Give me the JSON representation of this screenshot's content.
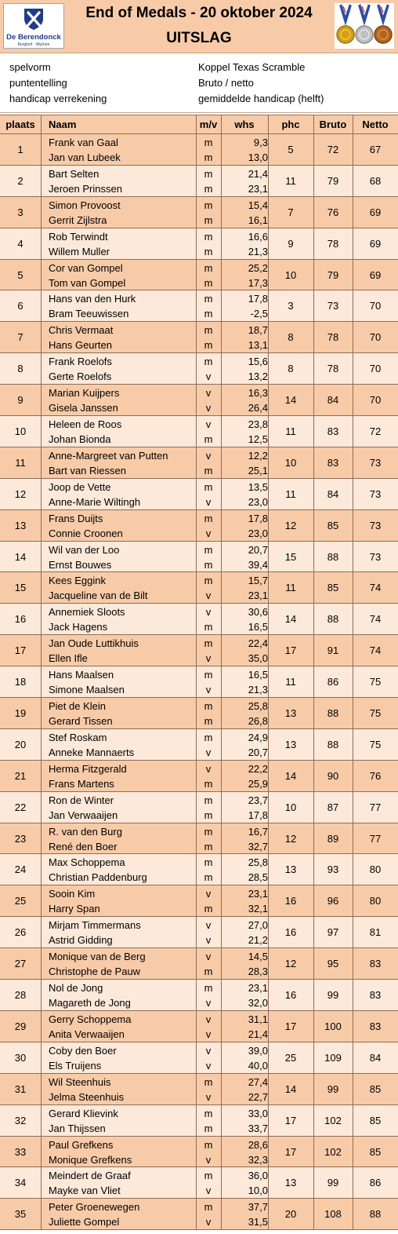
{
  "header": {
    "logo_name": "De Berendonck",
    "logo_sub": "Burgloof · Wijchen",
    "title": "End of Medals - 20 oktober 2024",
    "subtitle": "UITSLAG"
  },
  "info": [
    {
      "key": "spelvorm",
      "value": "Koppel Texas Scramble"
    },
    {
      "key": "puntentelling",
      "value": "Bruto / netto"
    },
    {
      "key": "handicap verrekening",
      "value": "gemiddelde handicap (helft)"
    }
  ],
  "columns": {
    "plaats": "plaats",
    "naam": "Naam",
    "mv": "m/v",
    "whs": "whs",
    "phc": "phc",
    "bruto": "Bruto",
    "netto": "Netto"
  },
  "rows": [
    {
      "plaats": "1",
      "players": [
        {
          "name": "Frank van Gaal",
          "mv": "m",
          "whs": "9,3"
        },
        {
          "name": "Jan van Lubeek",
          "mv": "m",
          "whs": "13,0"
        }
      ],
      "phc": "5",
      "bruto": "72",
      "netto": "67"
    },
    {
      "plaats": "2",
      "players": [
        {
          "name": "Bart Selten",
          "mv": "m",
          "whs": "21,4"
        },
        {
          "name": "Jeroen Prinssen",
          "mv": "m",
          "whs": "23,1"
        }
      ],
      "phc": "11",
      "bruto": "79",
      "netto": "68"
    },
    {
      "plaats": "3",
      "players": [
        {
          "name": "Simon Provoost",
          "mv": "m",
          "whs": "15,4"
        },
        {
          "name": "Gerrit Zijlstra",
          "mv": "m",
          "whs": "16,1"
        }
      ],
      "phc": "7",
      "bruto": "76",
      "netto": "69"
    },
    {
      "plaats": "4",
      "players": [
        {
          "name": "Rob Terwindt",
          "mv": "m",
          "whs": "16,6"
        },
        {
          "name": "Willem Muller",
          "mv": "m",
          "whs": "21,3"
        }
      ],
      "phc": "9",
      "bruto": "78",
      "netto": "69"
    },
    {
      "plaats": "5",
      "players": [
        {
          "name": "Cor van Gompel",
          "mv": "m",
          "whs": "25,2"
        },
        {
          "name": "Tom van Gompel",
          "mv": "m",
          "whs": "17,3"
        }
      ],
      "phc": "10",
      "bruto": "79",
      "netto": "69"
    },
    {
      "plaats": "6",
      "players": [
        {
          "name": "Hans van den Hurk",
          "mv": "m",
          "whs": "17,8"
        },
        {
          "name": "Bram Teeuwissen",
          "mv": "m",
          "whs": "-2,5"
        }
      ],
      "phc": "3",
      "bruto": "73",
      "netto": "70"
    },
    {
      "plaats": "7",
      "players": [
        {
          "name": "Chris Vermaat",
          "mv": "m",
          "whs": "18,7"
        },
        {
          "name": "Hans Geurten",
          "mv": "m",
          "whs": "13,1"
        }
      ],
      "phc": "8",
      "bruto": "78",
      "netto": "70"
    },
    {
      "plaats": "8",
      "players": [
        {
          "name": "Frank Roelofs",
          "mv": "m",
          "whs": "15,6"
        },
        {
          "name": "Gerte Roelofs",
          "mv": "v",
          "whs": "13,2"
        }
      ],
      "phc": "8",
      "bruto": "78",
      "netto": "70"
    },
    {
      "plaats": "9",
      "players": [
        {
          "name": "Marian Kuijpers",
          "mv": "v",
          "whs": "16,3"
        },
        {
          "name": "Gisela Janssen",
          "mv": "v",
          "whs": "26,4"
        }
      ],
      "phc": "14",
      "bruto": "84",
      "netto": "70"
    },
    {
      "plaats": "10",
      "players": [
        {
          "name": "Heleen de Roos",
          "mv": "v",
          "whs": "23,8"
        },
        {
          "name": "Johan Bionda",
          "mv": "m",
          "whs": "12,5"
        }
      ],
      "phc": "11",
      "bruto": "83",
      "netto": "72"
    },
    {
      "plaats": "11",
      "players": [
        {
          "name": "Anne-Margreet van Putten",
          "mv": "v",
          "whs": "12,2"
        },
        {
          "name": "Bart van Riessen",
          "mv": "m",
          "whs": "25,1"
        }
      ],
      "phc": "10",
      "bruto": "83",
      "netto": "73"
    },
    {
      "plaats": "12",
      "players": [
        {
          "name": "Joop de Vette",
          "mv": "m",
          "whs": "13,5"
        },
        {
          "name": "Anne-Marie Wiltingh",
          "mv": "v",
          "whs": "23,0"
        }
      ],
      "phc": "11",
      "bruto": "84",
      "netto": "73"
    },
    {
      "plaats": "13",
      "players": [
        {
          "name": "Frans Duijts",
          "mv": "m",
          "whs": "17,8"
        },
        {
          "name": "Connie Croonen",
          "mv": "v",
          "whs": "23,0"
        }
      ],
      "phc": "12",
      "bruto": "85",
      "netto": "73"
    },
    {
      "plaats": "14",
      "players": [
        {
          "name": "Wil van der Loo",
          "mv": "m",
          "whs": "20,7"
        },
        {
          "name": "Ernst Bouwes",
          "mv": "m",
          "whs": "39,4"
        }
      ],
      "phc": "15",
      "bruto": "88",
      "netto": "73"
    },
    {
      "plaats": "15",
      "players": [
        {
          "name": "Kees Eggink",
          "mv": "m",
          "whs": "15,7"
        },
        {
          "name": "Jacqueline van de Bilt",
          "mv": "v",
          "whs": "23,1"
        }
      ],
      "phc": "11",
      "bruto": "85",
      "netto": "74"
    },
    {
      "plaats": "16",
      "players": [
        {
          "name": "Annemiek Sloots",
          "mv": "v",
          "whs": "30,6"
        },
        {
          "name": "Jack Hagens",
          "mv": "m",
          "whs": "16,5"
        }
      ],
      "phc": "14",
      "bruto": "88",
      "netto": "74"
    },
    {
      "plaats": "17",
      "players": [
        {
          "name": "Jan Oude Luttikhuis",
          "mv": "m",
          "whs": "22,4"
        },
        {
          "name": "Ellen Ifle",
          "mv": "v",
          "whs": "35,0"
        }
      ],
      "phc": "17",
      "bruto": "91",
      "netto": "74"
    },
    {
      "plaats": "18",
      "players": [
        {
          "name": "Hans Maalsen",
          "mv": "m",
          "whs": "16,5"
        },
        {
          "name": "Simone Maalsen",
          "mv": "v",
          "whs": "21,3"
        }
      ],
      "phc": "11",
      "bruto": "86",
      "netto": "75"
    },
    {
      "plaats": "19",
      "players": [
        {
          "name": "Piet de Klein",
          "mv": "m",
          "whs": "25,8"
        },
        {
          "name": "Gerard Tissen",
          "mv": "m",
          "whs": "26,8"
        }
      ],
      "phc": "13",
      "bruto": "88",
      "netto": "75"
    },
    {
      "plaats": "20",
      "players": [
        {
          "name": "Stef Roskam",
          "mv": "m",
          "whs": "24,9"
        },
        {
          "name": "Anneke Mannaerts",
          "mv": "v",
          "whs": "20,7"
        }
      ],
      "phc": "13",
      "bruto": "88",
      "netto": "75"
    },
    {
      "plaats": "21",
      "players": [
        {
          "name": "Herma Fitzgerald",
          "mv": "v",
          "whs": "22,2"
        },
        {
          "name": "Frans Martens",
          "mv": "m",
          "whs": "25,9"
        }
      ],
      "phc": "14",
      "bruto": "90",
      "netto": "76"
    },
    {
      "plaats": "22",
      "players": [
        {
          "name": "Ron de Winter",
          "mv": "m",
          "whs": "23,7"
        },
        {
          "name": "Jan Verwaaijen",
          "mv": "m",
          "whs": "17,8"
        }
      ],
      "phc": "10",
      "bruto": "87",
      "netto": "77"
    },
    {
      "plaats": "23",
      "players": [
        {
          "name": "R. van den Burg",
          "mv": "m",
          "whs": "16,7"
        },
        {
          "name": "René den Boer",
          "mv": "m",
          "whs": "32,7"
        }
      ],
      "phc": "12",
      "bruto": "89",
      "netto": "77"
    },
    {
      "plaats": "24",
      "players": [
        {
          "name": "Max Schoppema",
          "mv": "m",
          "whs": "25,8"
        },
        {
          "name": "Christian Paddenburg",
          "mv": "m",
          "whs": "28,5"
        }
      ],
      "phc": "13",
      "bruto": "93",
      "netto": "80"
    },
    {
      "plaats": "25",
      "players": [
        {
          "name": "Sooin Kim",
          "mv": "v",
          "whs": "23,1"
        },
        {
          "name": "Harry Span",
          "mv": "m",
          "whs": "32,1"
        }
      ],
      "phc": "16",
      "bruto": "96",
      "netto": "80"
    },
    {
      "plaats": "26",
      "players": [
        {
          "name": "Mirjam Timmermans",
          "mv": "v",
          "whs": "27,0"
        },
        {
          "name": "Astrid Gidding",
          "mv": "v",
          "whs": "21,2"
        }
      ],
      "phc": "16",
      "bruto": "97",
      "netto": "81"
    },
    {
      "plaats": "27",
      "players": [
        {
          "name": "Monique van de Berg",
          "mv": "v",
          "whs": "14,5"
        },
        {
          "name": "Christophe de Pauw",
          "mv": "m",
          "whs": "28,3"
        }
      ],
      "phc": "12",
      "bruto": "95",
      "netto": "83"
    },
    {
      "plaats": "28",
      "players": [
        {
          "name": "Nol de Jong",
          "mv": "m",
          "whs": "23,1"
        },
        {
          "name": "Magareth de Jong",
          "mv": "v",
          "whs": "32,0"
        }
      ],
      "phc": "16",
      "bruto": "99",
      "netto": "83"
    },
    {
      "plaats": "29",
      "players": [
        {
          "name": "Gerry Schoppema",
          "mv": "v",
          "whs": "31,1"
        },
        {
          "name": "Anita Verwaaijen",
          "mv": "v",
          "whs": "21,4"
        }
      ],
      "phc": "17",
      "bruto": "100",
      "netto": "83"
    },
    {
      "plaats": "30",
      "players": [
        {
          "name": "Coby den Boer",
          "mv": "v",
          "whs": "39,0"
        },
        {
          "name": "Els Truijens",
          "mv": "v",
          "whs": "40,0"
        }
      ],
      "phc": "25",
      "bruto": "109",
      "netto": "84"
    },
    {
      "plaats": "31",
      "players": [
        {
          "name": "Wil Steenhuis",
          "mv": "m",
          "whs": "27,4"
        },
        {
          "name": "Jelma Steenhuis",
          "mv": "v",
          "whs": "22,7"
        }
      ],
      "phc": "14",
      "bruto": "99",
      "netto": "85"
    },
    {
      "plaats": "32",
      "players": [
        {
          "name": "Gerard Klievink",
          "mv": "m",
          "whs": "33,0"
        },
        {
          "name": "Jan Thijssen",
          "mv": "m",
          "whs": "33,7"
        }
      ],
      "phc": "17",
      "bruto": "102",
      "netto": "85"
    },
    {
      "plaats": "33",
      "players": [
        {
          "name": "Paul Grefkens",
          "mv": "m",
          "whs": "28,6"
        },
        {
          "name": "Monique Grefkens",
          "mv": "v",
          "whs": "32,3"
        }
      ],
      "phc": "17",
      "bruto": "102",
      "netto": "85"
    },
    {
      "plaats": "34",
      "players": [
        {
          "name": "Meindert de Graaf",
          "mv": "m",
          "whs": "36,0"
        },
        {
          "name": "Mayke van Vliet",
          "mv": "v",
          "whs": "10,0"
        }
      ],
      "phc": "13",
      "bruto": "99",
      "netto": "86"
    },
    {
      "plaats": "35",
      "players": [
        {
          "name": "Peter Groenewegen",
          "mv": "m",
          "whs": "37,7"
        },
        {
          "name": "Juliette Gompel",
          "mv": "v",
          "whs": "31,5"
        }
      ],
      "phc": "20",
      "bruto": "108",
      "netto": "88"
    }
  ]
}
